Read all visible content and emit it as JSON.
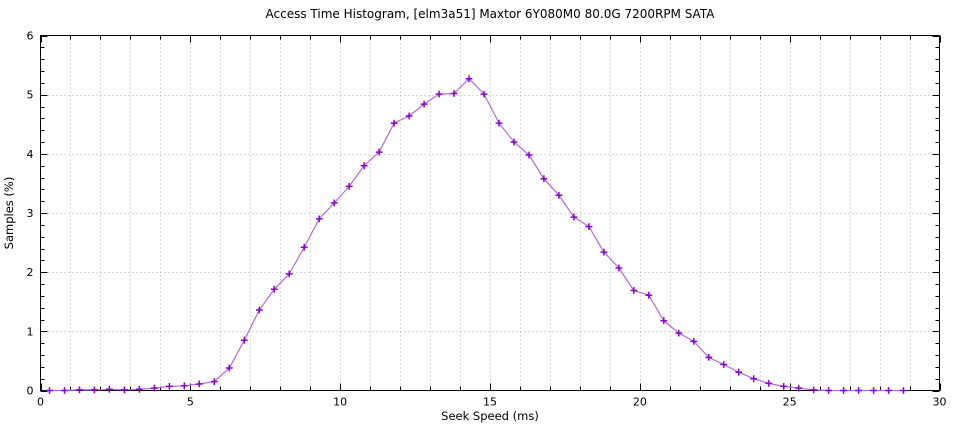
{
  "figure": {
    "background_color": "#ffffff",
    "frame_color": "#000000",
    "grid_color": "#b4b4b4",
    "line_color": "#b36be0",
    "marker_color": "#8a00d0",
    "text_color": "#000000"
  },
  "chart_data": {
    "type": "line",
    "title": "Access Time Histogram, [elm3a51] Maxtor 6Y080M0 80.0G 7200RPM SATA",
    "xlabel": "Seek Speed (ms)",
    "ylabel": "Samples (%)",
    "xlim": [
      0,
      30
    ],
    "ylim": [
      0,
      6
    ],
    "x_major_ticks": [
      0,
      5,
      10,
      15,
      20,
      25,
      30
    ],
    "x_minor_step": 1,
    "y_major_ticks": [
      0,
      1,
      2,
      3,
      4,
      5,
      6
    ],
    "y_minor_step": 0.2,
    "grid": "dotted vertical lines every 1 ms, dotted horizontal lines every 1 %",
    "legend": "none",
    "marker": "plus",
    "series": [
      {
        "name": "samples",
        "x": [
          0.3,
          0.8,
          1.3,
          1.8,
          2.3,
          2.8,
          3.3,
          3.8,
          4.3,
          4.8,
          5.3,
          5.8,
          6.3,
          6.8,
          7.3,
          7.8,
          8.3,
          8.8,
          9.3,
          9.8,
          10.3,
          10.8,
          11.3,
          11.8,
          12.3,
          12.8,
          13.3,
          13.8,
          14.3,
          14.8,
          15.3,
          15.8,
          16.3,
          16.8,
          17.3,
          17.8,
          18.3,
          18.8,
          19.3,
          19.8,
          20.3,
          20.8,
          21.3,
          21.8,
          22.3,
          22.8,
          23.3,
          23.8,
          24.3,
          24.8,
          25.3,
          25.8,
          26.3,
          26.8,
          27.3,
          27.8,
          28.3,
          28.8
        ],
        "y": [
          0.0,
          0.0,
          0.01,
          0.01,
          0.02,
          0.01,
          0.02,
          0.04,
          0.07,
          0.08,
          0.11,
          0.15,
          0.38,
          0.85,
          1.36,
          1.71,
          1.97,
          2.42,
          2.9,
          3.17,
          3.45,
          3.8,
          4.03,
          4.52,
          4.64,
          4.84,
          5.01,
          5.02,
          5.27,
          5.01,
          4.52,
          4.2,
          3.98,
          3.58,
          3.3,
          2.93,
          2.77,
          2.34,
          2.07,
          1.69,
          1.61,
          1.18,
          0.97,
          0.83,
          0.56,
          0.44,
          0.31,
          0.2,
          0.12,
          0.07,
          0.04,
          0.01,
          0.0,
          0.0,
          0.0,
          0.0,
          0.0,
          0.0
        ]
      }
    ]
  }
}
